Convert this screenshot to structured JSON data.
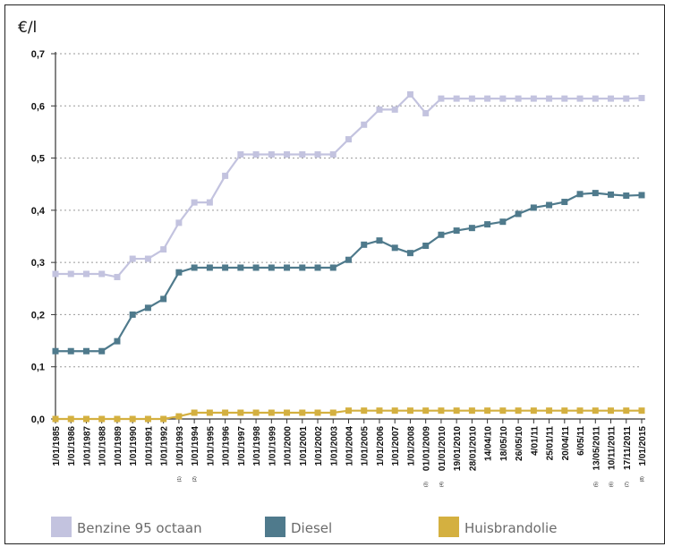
{
  "chart_data": {
    "type": "line",
    "ylabel": "€/l",
    "ylim": [
      0,
      0.7
    ],
    "yticks": [
      "0,0",
      "0,1",
      "0,2",
      "0,3",
      "0,4",
      "0,5",
      "0,6",
      "0,7"
    ],
    "grid": "horizontal dotted",
    "legend_position": "bottom",
    "categories": [
      "1/01/1985",
      "1/01/1986",
      "1/01/1987",
      "1/01/1988",
      "1/01/1989",
      "1/01/1990",
      "1/01/1991",
      "1/01/1992",
      "1/01/1993",
      "1/01/1994",
      "1/01/1995",
      "1/01/1996",
      "1/01/1997",
      "1/01/1998",
      "1/01/1999",
      "1/01/2000",
      "1/01/2001",
      "1/01/2002",
      "1/01/2003",
      "1/01/2004",
      "1/01/2005",
      "1/01/2006",
      "1/01/2007",
      "1/01/2008",
      "01/01/2009",
      "01/01/2010",
      "19/01/2010",
      "28/01/2010",
      "14/04/10",
      "18/05/10",
      "26/05/10",
      "4/01/11",
      "25/01/11",
      "20/04/11",
      "6/05/11",
      "13/05/2011",
      "10/11/2011",
      "17/11/2011",
      "1/01/2015"
    ],
    "category_notes": [
      "",
      "",
      "",
      "",
      "",
      "",
      "",
      "",
      "(1)",
      "(2)",
      "",
      "",
      "",
      "",
      "",
      "",
      "",
      "",
      "",
      "",
      "",
      "",
      "",
      "",
      "(3)",
      "(4)",
      "",
      "",
      "",
      "",
      "",
      "",
      "",
      "",
      "",
      "(5)",
      "(6)",
      "(7)",
      "(8)"
    ],
    "series": [
      {
        "name": "Benzine 95 octaan",
        "color": "#c3c3df",
        "values": [
          0.278,
          0.278,
          0.278,
          0.278,
          0.272,
          0.307,
          0.307,
          0.325,
          0.376,
          0.415,
          0.415,
          0.466,
          0.507,
          0.507,
          0.507,
          0.507,
          0.507,
          0.507,
          0.507,
          0.536,
          0.564,
          0.593,
          0.593,
          0.622,
          0.586,
          0.614,
          0.614,
          0.614,
          0.614,
          0.614,
          0.614,
          0.614,
          0.614,
          0.614,
          0.614,
          0.614,
          0.614,
          0.614,
          0.615
        ]
      },
      {
        "name": "Diesel",
        "color": "#4f7a8c",
        "values": [
          0.13,
          0.13,
          0.13,
          0.13,
          0.149,
          0.2,
          0.213,
          0.23,
          0.281,
          0.29,
          0.29,
          0.29,
          0.29,
          0.29,
          0.29,
          0.29,
          0.29,
          0.29,
          0.29,
          0.305,
          0.334,
          0.342,
          0.328,
          0.318,
          0.332,
          0.353,
          0.361,
          0.366,
          0.373,
          0.378,
          0.393,
          0.405,
          0.41,
          0.416,
          0.431,
          0.433,
          0.43,
          0.428,
          0.429
        ]
      },
      {
        "name": "Huisbrandolie",
        "color": "#d4b040",
        "values": [
          0,
          0,
          0,
          0,
          0,
          0,
          0,
          0,
          0.005,
          0.012,
          0.012,
          0.012,
          0.012,
          0.012,
          0.012,
          0.012,
          0.012,
          0.012,
          0.012,
          0.016,
          0.016,
          0.016,
          0.016,
          0.016,
          0.016,
          0.016,
          0.016,
          0.016,
          0.016,
          0.016,
          0.016,
          0.016,
          0.016,
          0.016,
          0.016,
          0.016,
          0.016,
          0.016,
          0.016
        ]
      }
    ]
  }
}
